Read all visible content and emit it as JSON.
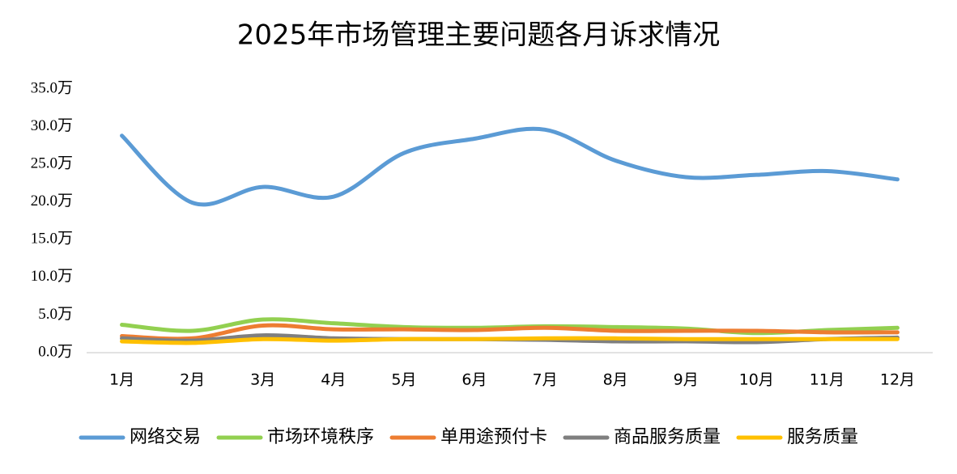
{
  "chart_data": {
    "type": "line",
    "title": "2025年市场管理主要问题各月诉求情况",
    "categories": [
      "1月",
      "2月",
      "3月",
      "4月",
      "5月",
      "6月",
      "7月",
      "8月",
      "9月",
      "10月",
      "11月",
      "12月"
    ],
    "series": [
      {
        "name": "网络交易",
        "color": "#5b9bd5",
        "values": [
          28.8,
          19.9,
          22.0,
          20.7,
          26.5,
          28.4,
          29.6,
          25.5,
          23.3,
          23.6,
          24.1,
          23.0
        ]
      },
      {
        "name": "市场环境秩序",
        "color": "#92d050",
        "values": [
          3.7,
          2.9,
          4.4,
          3.9,
          3.4,
          3.3,
          3.5,
          3.4,
          3.2,
          2.6,
          3.0,
          3.3
        ]
      },
      {
        "name": "单用途预付卡",
        "color": "#ed7d31",
        "values": [
          2.2,
          1.9,
          3.6,
          3.1,
          3.1,
          3.0,
          3.3,
          2.9,
          2.9,
          2.9,
          2.7,
          2.7
        ]
      },
      {
        "name": "商品服务质量",
        "color": "#7f7f7f",
        "values": [
          1.9,
          1.6,
          2.3,
          1.9,
          1.8,
          1.8,
          1.7,
          1.5,
          1.5,
          1.4,
          1.8,
          2.0
        ]
      },
      {
        "name": "服务质量",
        "color": "#ffc000",
        "values": [
          1.5,
          1.3,
          1.8,
          1.6,
          1.8,
          1.8,
          1.9,
          1.9,
          1.8,
          1.8,
          1.8,
          1.8
        ]
      }
    ],
    "ylim": [
      0,
      35
    ],
    "yticks": [
      {
        "value": 0,
        "label": "0.0万"
      },
      {
        "value": 5,
        "label": "5.0万"
      },
      {
        "value": 10,
        "label": "10.0万"
      },
      {
        "value": 15,
        "label": "15.0万"
      },
      {
        "value": 20,
        "label": "20.0万"
      },
      {
        "value": 25,
        "label": "25.0万"
      },
      {
        "value": 30,
        "label": "30.0万"
      },
      {
        "value": 35,
        "label": "35.0万"
      }
    ],
    "legend": "bottom",
    "grid": false
  }
}
